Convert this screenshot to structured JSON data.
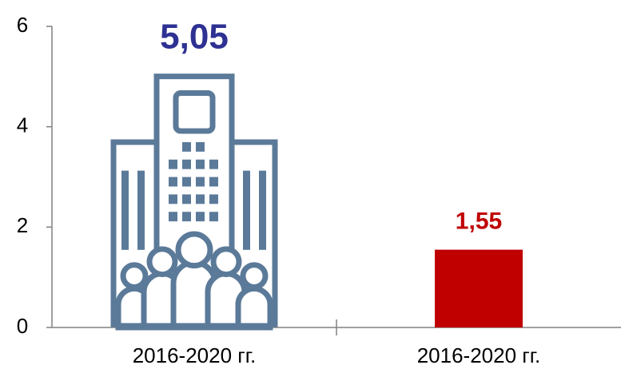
{
  "chart_data": {
    "type": "bar",
    "categories": [
      "2016-2020 гг.",
      "2016-2020 гг."
    ],
    "values": [
      5.05,
      1.55
    ],
    "value_labels": [
      "5,05",
      "1,55"
    ],
    "colors": [
      "#5b7a99",
      "#c00000"
    ],
    "label_colors": [
      "#2e3192",
      "#c00000"
    ],
    "ylim": [
      0,
      6
    ],
    "yticks": [
      0,
      2,
      4,
      6
    ],
    "grid": false
  }
}
